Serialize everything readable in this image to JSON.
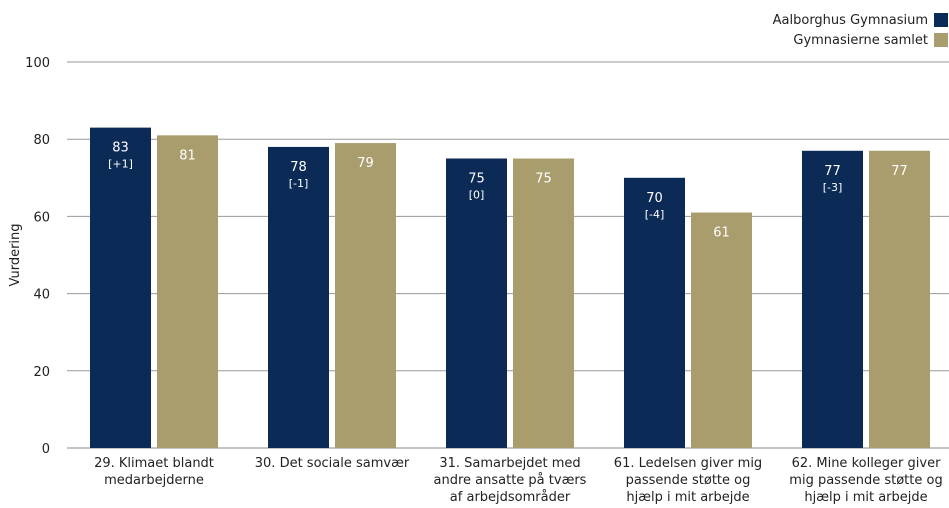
{
  "chart_data": {
    "type": "bar",
    "ylabel": "Vurdering",
    "ylim": [
      0,
      100
    ],
    "yticks": [
      0,
      20,
      40,
      60,
      80,
      100
    ],
    "grid": true,
    "legend_position": "top-right",
    "categories": [
      [
        "29. Klimaet blandt",
        "medarbejderne"
      ],
      [
        "30. Det sociale samvær"
      ],
      [
        "31. Samarbejdet med",
        "andre ansatte på tværs",
        "af arbejdsområder"
      ],
      [
        "61. Ledelsen giver mig",
        "passende støtte og",
        "hjælp i mit arbejde"
      ],
      [
        "62. Mine kolleger giver",
        "mig passende støtte og",
        "hjælp i mit arbejde"
      ]
    ],
    "series": [
      {
        "name": "Aalborghus Gymnasium",
        "color": "#0b2a55",
        "values": [
          83,
          78,
          75,
          70,
          77
        ],
        "value_labels": [
          "83",
          "78",
          "75",
          "70",
          "77"
        ],
        "delta_labels": [
          "[+1]",
          "[-1]",
          "[0]",
          "[-4]",
          "[-3]"
        ]
      },
      {
        "name": "Gymnasierne samlet",
        "color": "#a99c6d",
        "values": [
          81,
          79,
          75,
          61,
          77
        ],
        "value_labels": [
          "81",
          "79",
          "75",
          "61",
          "77"
        ]
      }
    ]
  }
}
